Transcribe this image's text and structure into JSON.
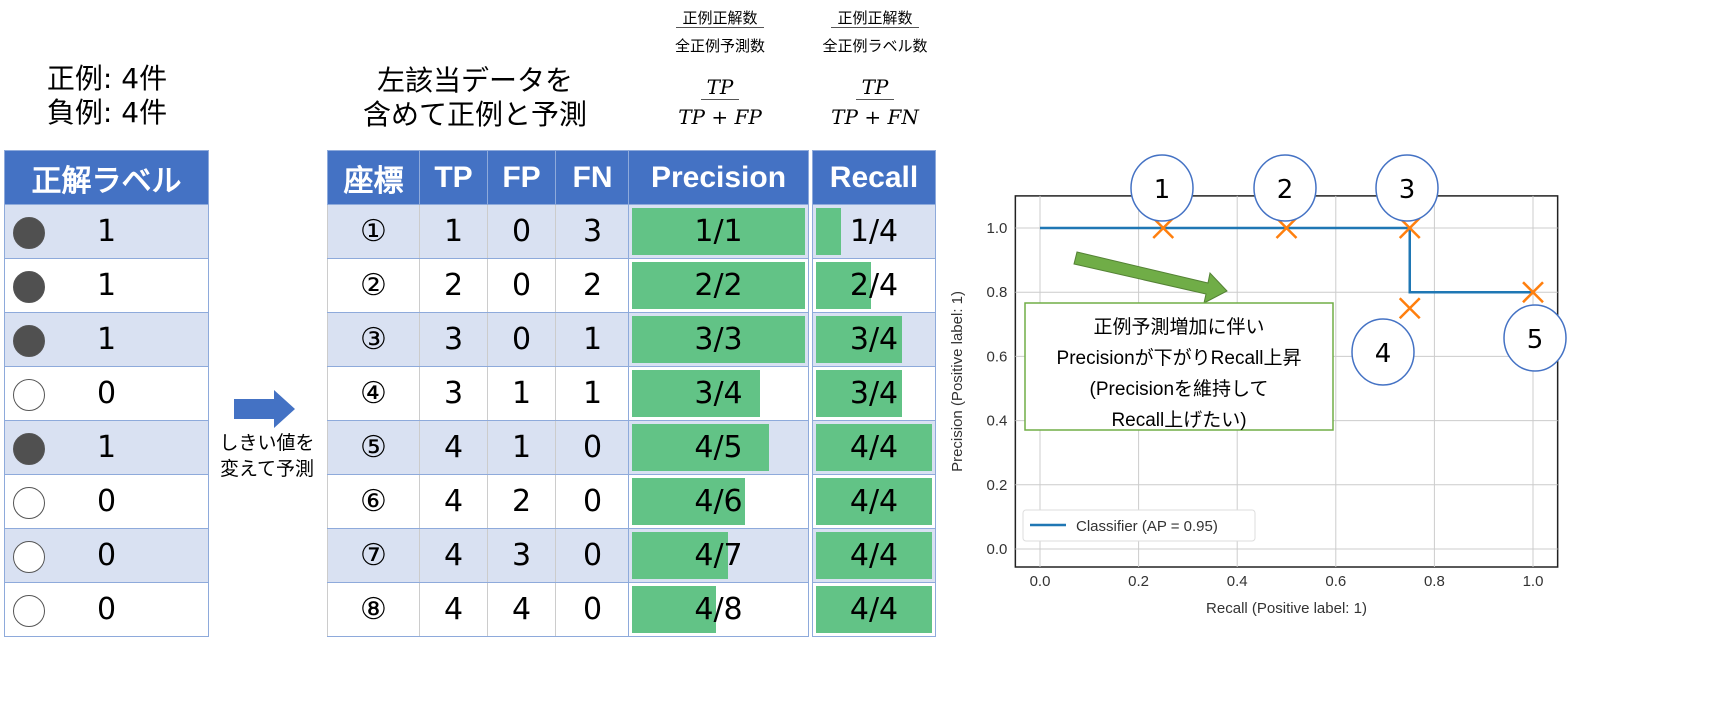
{
  "summary": {
    "positive": "正例: 4件",
    "negative": "負例: 4件"
  },
  "label_table": {
    "header": "正解ラベル",
    "rows": [
      {
        "label": "1",
        "filled": true
      },
      {
        "label": "1",
        "filled": true
      },
      {
        "label": "1",
        "filled": true
      },
      {
        "label": "0",
        "filled": false
      },
      {
        "label": "1",
        "filled": true
      },
      {
        "label": "0",
        "filled": false
      },
      {
        "label": "0",
        "filled": false
      },
      {
        "label": "0",
        "filled": false
      }
    ]
  },
  "arrow_text": {
    "line1": "しきい値を",
    "line2": "変えて予測"
  },
  "middle_title": {
    "line1": "左該当データを",
    "line2": "含めて正例と予測"
  },
  "formulas": {
    "precision": {
      "jp_num": "正例正解数",
      "jp_den": "全正例予測数",
      "num": "TP",
      "den": "TP + FP"
    },
    "recall": {
      "jp_num": "正例正解数",
      "jp_den": "全正例ラベル数",
      "num": "TP",
      "den": "TP + FN"
    }
  },
  "count_table": {
    "headers": [
      "座標",
      "TP",
      "FP",
      "FN"
    ],
    "rows": [
      [
        "①",
        "1",
        "0",
        "3"
      ],
      [
        "②",
        "2",
        "0",
        "2"
      ],
      [
        "③",
        "3",
        "0",
        "1"
      ],
      [
        "④",
        "3",
        "1",
        "1"
      ],
      [
        "⑤",
        "4",
        "1",
        "0"
      ],
      [
        "⑥",
        "4",
        "2",
        "0"
      ],
      [
        "⑦",
        "4",
        "3",
        "0"
      ],
      [
        "⑧",
        "4",
        "4",
        "0"
      ]
    ]
  },
  "precision_table": {
    "header": "Precision",
    "rows": [
      {
        "text": "1/1",
        "value": 1
      },
      {
        "text": "2/2",
        "value": 1
      },
      {
        "text": "3/3",
        "value": 1
      },
      {
        "text": "3/4",
        "value": 0.75
      },
      {
        "text": "4/5",
        "value": 0.8
      },
      {
        "text": "4/6",
        "value": 0.667
      },
      {
        "text": "4/7",
        "value": 0.571
      },
      {
        "text": "4/8",
        "value": 0.5
      }
    ]
  },
  "recall_table": {
    "header": "Recall",
    "rows": [
      {
        "text": "1/4",
        "value": 0.25
      },
      {
        "text": "2/4",
        "value": 0.5
      },
      {
        "text": "3/4",
        "value": 0.75
      },
      {
        "text": "3/4",
        "value": 0.75
      },
      {
        "text": "4/4",
        "value": 1
      },
      {
        "text": "4/4",
        "value": 1
      },
      {
        "text": "4/4",
        "value": 1
      },
      {
        "text": "4/4",
        "value": 1
      }
    ]
  },
  "colors": {
    "header": "#4472C4",
    "bar": "#62C386",
    "line": "#1f77b4",
    "marker": "#ff7f0e",
    "callout": "#4472C4",
    "annotation": "#70AD47"
  },
  "chart_data": {
    "type": "line",
    "xlabel": "Recall (Positive label: 1)",
    "ylabel": "Precision (Positive label: 1)",
    "xlim": [
      -0.05,
      1.05
    ],
    "ylim": [
      0,
      1.1
    ],
    "xticks": [
      "0.0",
      "0.2",
      "0.4",
      "0.6",
      "0.8",
      "1.0"
    ],
    "yticks": [
      "0.0",
      "0.2",
      "0.4",
      "0.6",
      "0.8",
      "1.0"
    ],
    "grid": true,
    "series": [
      {
        "name": "Classifier (AP = 0.95)",
        "x": [
          0,
          0.75,
          0.75,
          1
        ],
        "y": [
          1,
          1,
          0.8,
          0.8
        ]
      }
    ],
    "legend": "bottom-left",
    "points": [
      {
        "label": "1",
        "x": 0.25,
        "y": 1
      },
      {
        "label": "2",
        "x": 0.5,
        "y": 1
      },
      {
        "label": "3",
        "x": 0.75,
        "y": 1
      },
      {
        "label": "4",
        "x": 0.75,
        "y": 0.75
      },
      {
        "label": "5",
        "x": 1,
        "y": 0.8
      }
    ],
    "annotation": {
      "line1": "正例予測増加に伴い",
      "line2": "Precisionが下がりRecall上昇",
      "line3": "(Precisionを維持して",
      "line4": "Recall上げたい)"
    }
  }
}
